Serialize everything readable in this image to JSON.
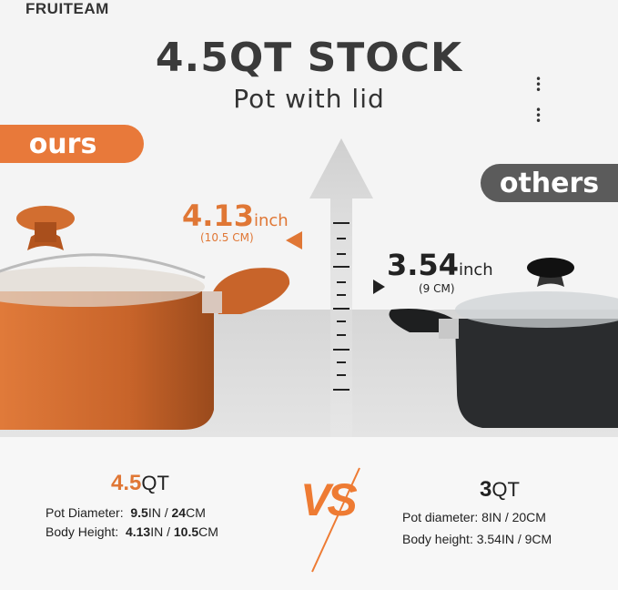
{
  "brand": "FRUITEAM",
  "header": {
    "title": "4.5QT STOCK",
    "subtitle": "Pot with lid"
  },
  "labels": {
    "ours": "ours",
    "others": "others"
  },
  "ours_measure": {
    "value": "4.13",
    "unit": "inch",
    "cm": "(10.5 CM)"
  },
  "others_measure": {
    "value": "3.54",
    "unit": "inch",
    "cm": "(9 CM)"
  },
  "ours_specs": {
    "capacity_value": "4.5",
    "capacity_unit": "QT",
    "diameter_label": "Pot Diameter:",
    "diameter_in": "9.5",
    "diameter_in_unit": "IN / ",
    "diameter_cm": "24",
    "diameter_cm_unit": "CM",
    "height_label": "Body Height:",
    "height_in": "4.13",
    "height_in_unit": "IN / ",
    "height_cm": "10.5",
    "height_cm_unit": "CM"
  },
  "others_specs": {
    "capacity_value": "3",
    "capacity_unit": "QT",
    "diameter": "Pot diameter:  8IN / 20CM",
    "height": "Body height:  3.54IN / 9CM"
  },
  "vs": "VS",
  "colors": {
    "accent": "#e8793a",
    "others": "#5b5b5b",
    "copper": "#c8642a",
    "black_pot": "#2a2c2e"
  }
}
